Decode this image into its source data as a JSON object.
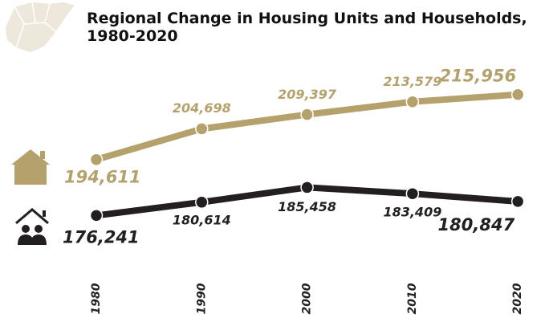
{
  "chart_data": {
    "type": "line",
    "title": "Regional Change in Housing Units and Households, 1980-2020",
    "categories": [
      "1980",
      "1990",
      "2000",
      "2010",
      "2020"
    ],
    "series": [
      {
        "color": "#b5a16c",
        "values": [
          194611,
          204698,
          209397,
          213579,
          215956
        ],
        "value_labels": [
          "194,611",
          "204,698",
          "209,397",
          "213,579",
          "215,956"
        ]
      },
      {
        "color": "#231f20",
        "values": [
          176241,
          180614,
          185458,
          183409,
          180847
        ],
        "value_labels": [
          "176,241",
          "180,614",
          "185,458",
          "183,409",
          "180,847"
        ]
      }
    ],
    "ylim": [
      160000,
      223000
    ]
  }
}
